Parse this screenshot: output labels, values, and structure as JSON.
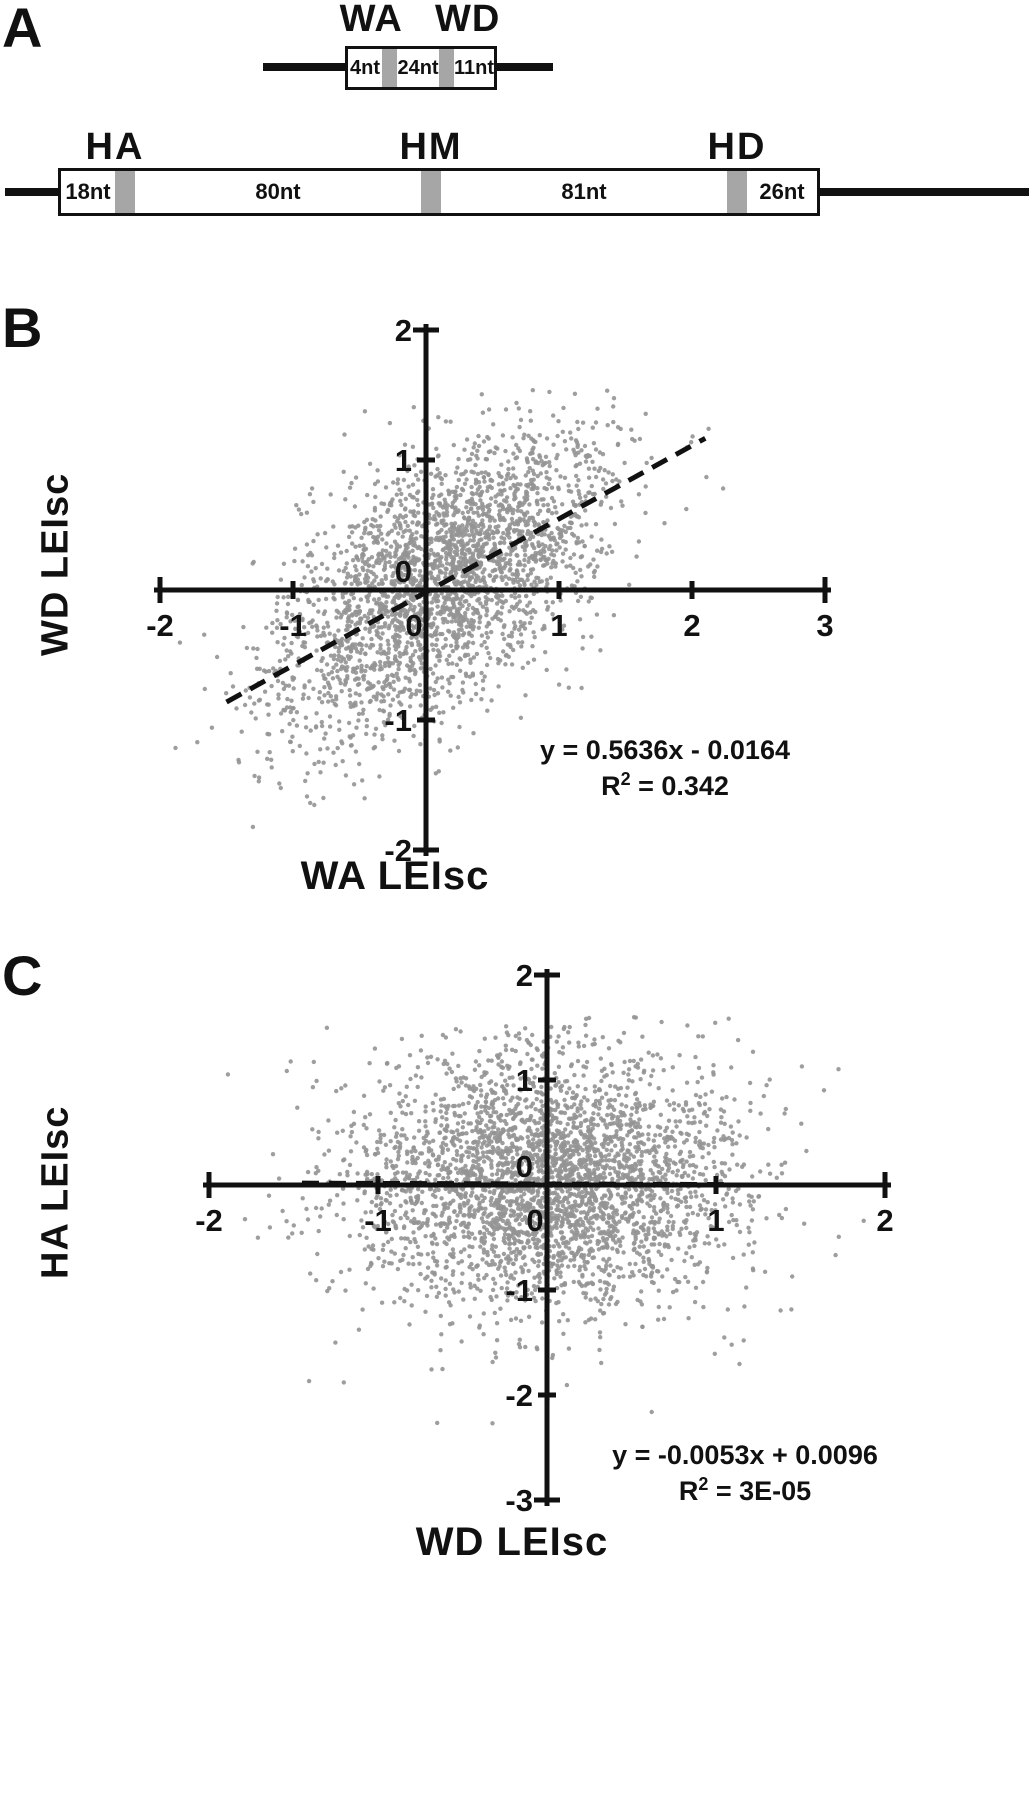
{
  "figure": {
    "panel_a": {
      "label": "A",
      "short_construct": {
        "title": "WA WD",
        "segments": [
          "4nt",
          "24nt",
          "11nt"
        ]
      },
      "long_construct": {
        "site_labels": [
          "HA",
          "HM",
          "HD"
        ],
        "segments": [
          "18nt",
          "80nt",
          "81nt",
          "26nt"
        ]
      }
    },
    "panel_b": {
      "label": "B"
    },
    "panel_c": {
      "label": "C"
    }
  },
  "colors": {
    "ink": "#111111",
    "band_gray": "#a6a6a6",
    "point_gray": "#949494"
  },
  "chart_data": [
    {
      "id": "panel_b",
      "type": "scatter",
      "xlabel": "WA LEIsc",
      "ylabel": "WD LEIsc",
      "xlim": [
        -2,
        3
      ],
      "ylim": [
        -2,
        2
      ],
      "xticks": [
        -2,
        -1,
        0,
        1,
        2,
        3
      ],
      "yticks": [
        -2,
        -1,
        0,
        1,
        2
      ],
      "grid": false,
      "legend": "none",
      "regression": {
        "slope": 0.5636,
        "intercept": -0.0164,
        "r2": 0.342,
        "equation_text": "y = 0.5636x - 0.0164",
        "r_label": "R",
        "r_exponent": "2",
        "r2_value": " = 0.342",
        "line_x_range": [
          -1.5,
          2.1
        ],
        "style": "dashed"
      },
      "points": {
        "n": 2800,
        "mean": [
          0.12,
          0.08
        ],
        "sd": [
          0.62,
          0.58
        ],
        "corr": 0.59,
        "seed": 20,
        "clip_x": [
          -1.95,
          2.25
        ],
        "clip_y": [
          -1.9,
          1.55
        ],
        "tail_frac": 0.03,
        "tail_sd_scale": 1.4
      }
    },
    {
      "id": "panel_c",
      "type": "scatter",
      "xlabel": "WD LEIsc",
      "ylabel": "HA LEIsc",
      "xlim": [
        -2,
        2
      ],
      "ylim": [
        -3,
        2
      ],
      "xticks": [
        -2,
        -1,
        0,
        1,
        2
      ],
      "yticks": [
        -3,
        -2,
        -1,
        0,
        1,
        2
      ],
      "grid": false,
      "legend": "none",
      "regression": {
        "slope": -0.0053,
        "intercept": 0.0096,
        "r2": 3e-05,
        "equation_text": "y = -0.0053x + 0.0096",
        "r_label": "R",
        "r_exponent": "2",
        "r2_value": " = 3E-05",
        "line_x_range": [
          -1.45,
          1.05
        ],
        "style": "dashed"
      },
      "points": {
        "n": 3400,
        "mean": [
          0.0,
          0.02
        ],
        "sd": [
          0.56,
          0.6
        ],
        "corr": 0.0,
        "seed": 77,
        "clip_x": [
          -1.9,
          1.9
        ],
        "clip_y": [
          -2.55,
          1.6
        ],
        "tail_frac": 0.05,
        "tail_sd_scale": 1.6
      }
    }
  ]
}
